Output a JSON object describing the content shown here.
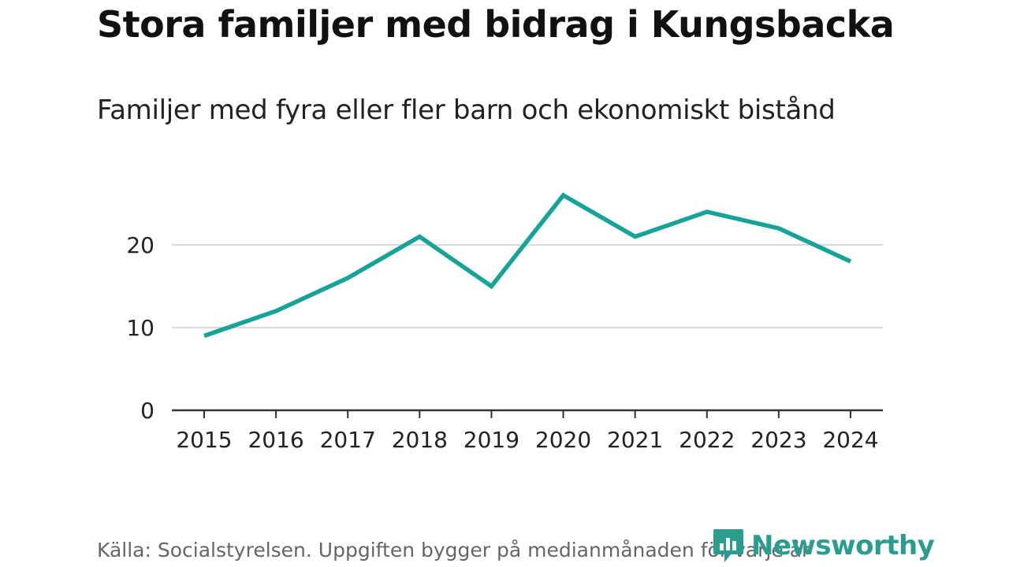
{
  "title": "Stora familjer med bidrag i Kungsbacka",
  "subtitle": "Familjer med fyra eller fler barn och ekonomiskt bistånd",
  "source": "Källa: Socialstyrelsen. Uppgiften bygger på medianmånaden för varje år",
  "brand": {
    "name": "Newsworthy",
    "icon": "newsworthy-logo-icon",
    "color": "#2a9d8f"
  },
  "chart_data": {
    "type": "line",
    "title": "Familjer med fyra eller fler barn och ekonomiskt bistånd",
    "xlabel": "",
    "ylabel": "",
    "categories": [
      "2015",
      "2016",
      "2017",
      "2018",
      "2019",
      "2020",
      "2021",
      "2022",
      "2023",
      "2024"
    ],
    "series": [
      {
        "name": "Familjer",
        "values": [
          9,
          12,
          16,
          21,
          15,
          26,
          21,
          24,
          22,
          18
        ],
        "color": "#16a398"
      }
    ],
    "ylim": [
      0,
      26
    ],
    "yticks": [
      0,
      10,
      20
    ],
    "grid": true,
    "legend": "none"
  }
}
